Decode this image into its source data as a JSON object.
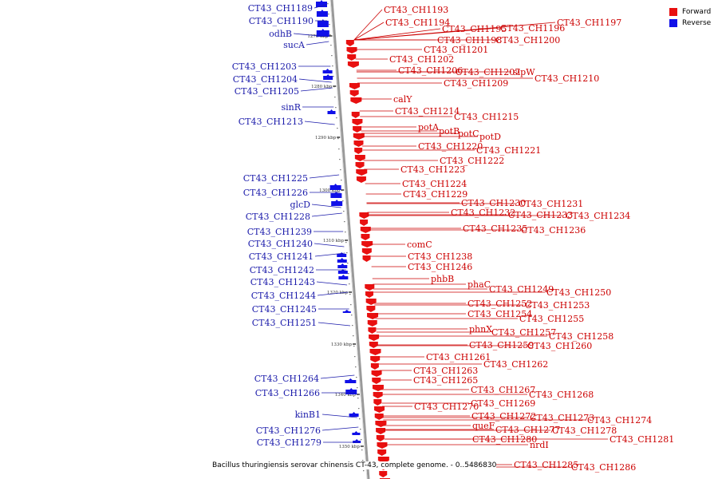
{
  "caption": "Bacillus thuringiensis serovar chinensis CT-43, complete genome. - 0..5486830",
  "legend": [
    {
      "label": "Forward",
      "color": "#e81010"
    },
    {
      "label": "Reverse",
      "color": "#1010e8"
    }
  ],
  "colors": {
    "forward": "#e81010",
    "reverse": "#1010e8",
    "forward_text": "#cc0000",
    "reverse_text": "#1a1aaa",
    "axis": "#999999"
  },
  "ticks": [
    "1270 kbp",
    "1280 kbp",
    "1290 kbp",
    "1300 kbp",
    "1310 kbp",
    "1320 kbp",
    "1330 kbp",
    "1340 kbp",
    "1350 kbp"
  ],
  "forward_labels": [
    "CT43_CH1193",
    "CT43_CH1194",
    "CT43_CH1195",
    "CT43_CH1196",
    "CT43_CH1197",
    "CT43_CH1198",
    "CT43_CH1200",
    "CT43_CH1201",
    "CT43_CH1202",
    "CT43_CH1206",
    "CT43_CH1207",
    "sipW",
    "CT43_CH1210",
    "CT43_CH1209",
    "calY",
    "CT43_CH1214",
    "CT43_CH1215",
    "potA",
    "potB",
    "potC",
    "potD",
    "CT43_CH1220",
    "CT43_CH1221",
    "CT43_CH1222",
    "CT43_CH1223",
    "CT43_CH1224",
    "CT43_CH1229",
    "CT43_CH1230",
    "CT43_CH1231",
    "CT43_CH1232",
    "CT43_CH1233",
    "CT43_CH1234",
    "CT43_CH1235",
    "CT43_CH1236",
    "comC",
    "CT43_CH1238",
    "CT43_CH1246",
    "phbB",
    "phaC",
    "CT43_CH1249",
    "CT43_CH1250",
    "CT43_CH1252",
    "CT43_CH1253",
    "CT43_CH1254",
    "CT43_CH1255",
    "phnX",
    "CT43_CH1257",
    "CT43_CH1258",
    "CT43_CH1259",
    "CT43_CH1260",
    "CT43_CH1261",
    "CT43_CH1262",
    "CT43_CH1263",
    "CT43_CH1265",
    "CT43_CH1267",
    "CT43_CH1268",
    "CT43_CH1269",
    "CT43_CH1270",
    "CT43_CH1272",
    "CT43_CH1273",
    "CT43_CH1274",
    "queF",
    "CT43_CH1277",
    "CT43_CH1278",
    "CT43_CH1280",
    "CT43_CH1281",
    "nrdI",
    "CT43_CH1285",
    "CT43_CH1286"
  ],
  "reverse_labels": [
    "CT43_CH1189",
    "CT43_CH1190",
    "odhB",
    "sucA",
    "CT43_CH1203",
    "CT43_CH1204",
    "CT43_CH1205",
    "sinR",
    "CT43_CH1213",
    "CT43_CH1225",
    "CT43_CH1226",
    "glcD",
    "CT43_CH1228",
    "CT43_CH1239",
    "CT43_CH1240",
    "CT43_CH1241",
    "CT43_CH1242",
    "CT43_CH1243",
    "CT43_CH1244",
    "CT43_CH1245",
    "CT43_CH1251",
    "CT43_CH1264",
    "CT43_CH1266",
    "kinB1",
    "CT43_CH1276",
    "CT43_CH1279"
  ]
}
